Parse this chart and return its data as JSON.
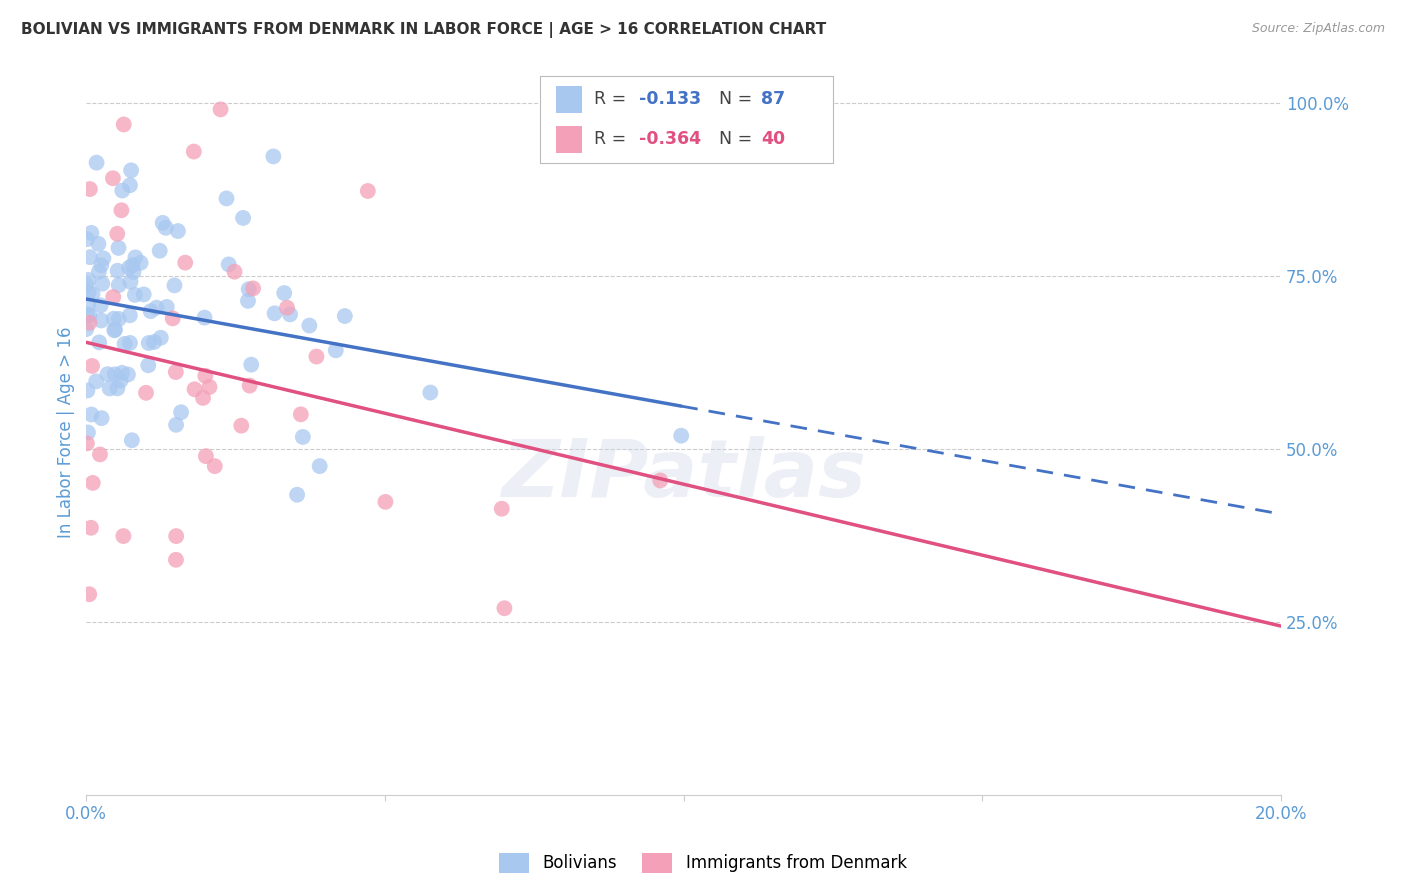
{
  "title": "BOLIVIAN VS IMMIGRANTS FROM DENMARK IN LABOR FORCE | AGE > 16 CORRELATION CHART",
  "source": "Source: ZipAtlas.com",
  "ylabel": "In Labor Force | Age > 16",
  "xlim": [
    0.0,
    0.2
  ],
  "ylim": [
    0.0,
    1.05
  ],
  "yticks": [
    0.0,
    0.25,
    0.5,
    0.75,
    1.0
  ],
  "ytick_labels": [
    "",
    "25.0%",
    "50.0%",
    "75.0%",
    "100.0%"
  ],
  "xticks": [
    0.0,
    0.05,
    0.1,
    0.15,
    0.2
  ],
  "xtick_labels": [
    "0.0%",
    "",
    "",
    "",
    "20.0%"
  ],
  "blue_color": "#a8c8f0",
  "pink_color": "#f4a0b8",
  "blue_line_color": "#4472c4",
  "pink_line_color": "#e05080",
  "blue_r": -0.133,
  "blue_n": 87,
  "pink_r": -0.364,
  "pink_n": 40,
  "legend_labels": [
    "Bolivians",
    "Immigrants from Denmark"
  ],
  "watermark": "ZIPatlas",
  "background_color": "#ffffff",
  "grid_color": "#cccccc",
  "title_color": "#333333",
  "axis_label_color": "#5b9bd5",
  "seed_blue": 7,
  "seed_pink": 99
}
